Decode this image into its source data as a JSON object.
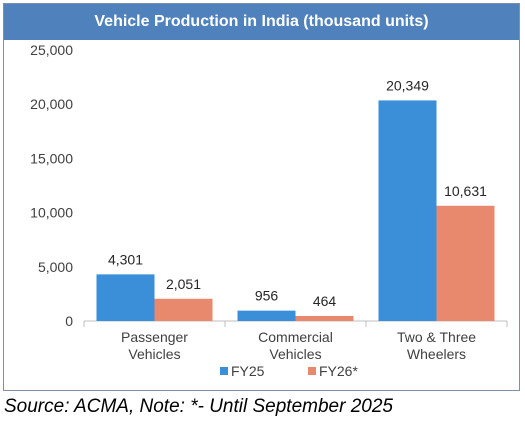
{
  "chart_data": {
    "type": "bar",
    "title": "Vehicle Production in India (thousand units)",
    "categories": [
      [
        "Passenger",
        "Vehicles"
      ],
      [
        "Commercial",
        "Vehicles"
      ],
      [
        "Two & Three",
        "Wheelers"
      ]
    ],
    "series": [
      {
        "name": "FY25",
        "color": "#3a8fd8",
        "values": [
          4301,
          956,
          20349
        ],
        "labels": [
          "4,301",
          "956",
          "20,349"
        ]
      },
      {
        "name": "FY26*",
        "color": "#e8896e",
        "values": [
          2051,
          464,
          10631
        ],
        "labels": [
          "2,051",
          "464",
          "10,631"
        ]
      }
    ],
    "ylim": [
      0,
      25000
    ],
    "yticks": [
      0,
      5000,
      10000,
      15000,
      20000,
      25000
    ],
    "ytick_labels": [
      "0",
      "5,000",
      "10,000",
      "15,000",
      "20,000",
      "25,000"
    ],
    "xlabel": "",
    "ylabel": "",
    "grid": false,
    "legend_position": "bottom-center"
  },
  "source_note": "Source: ACMA, Note: *- Until September 2025"
}
